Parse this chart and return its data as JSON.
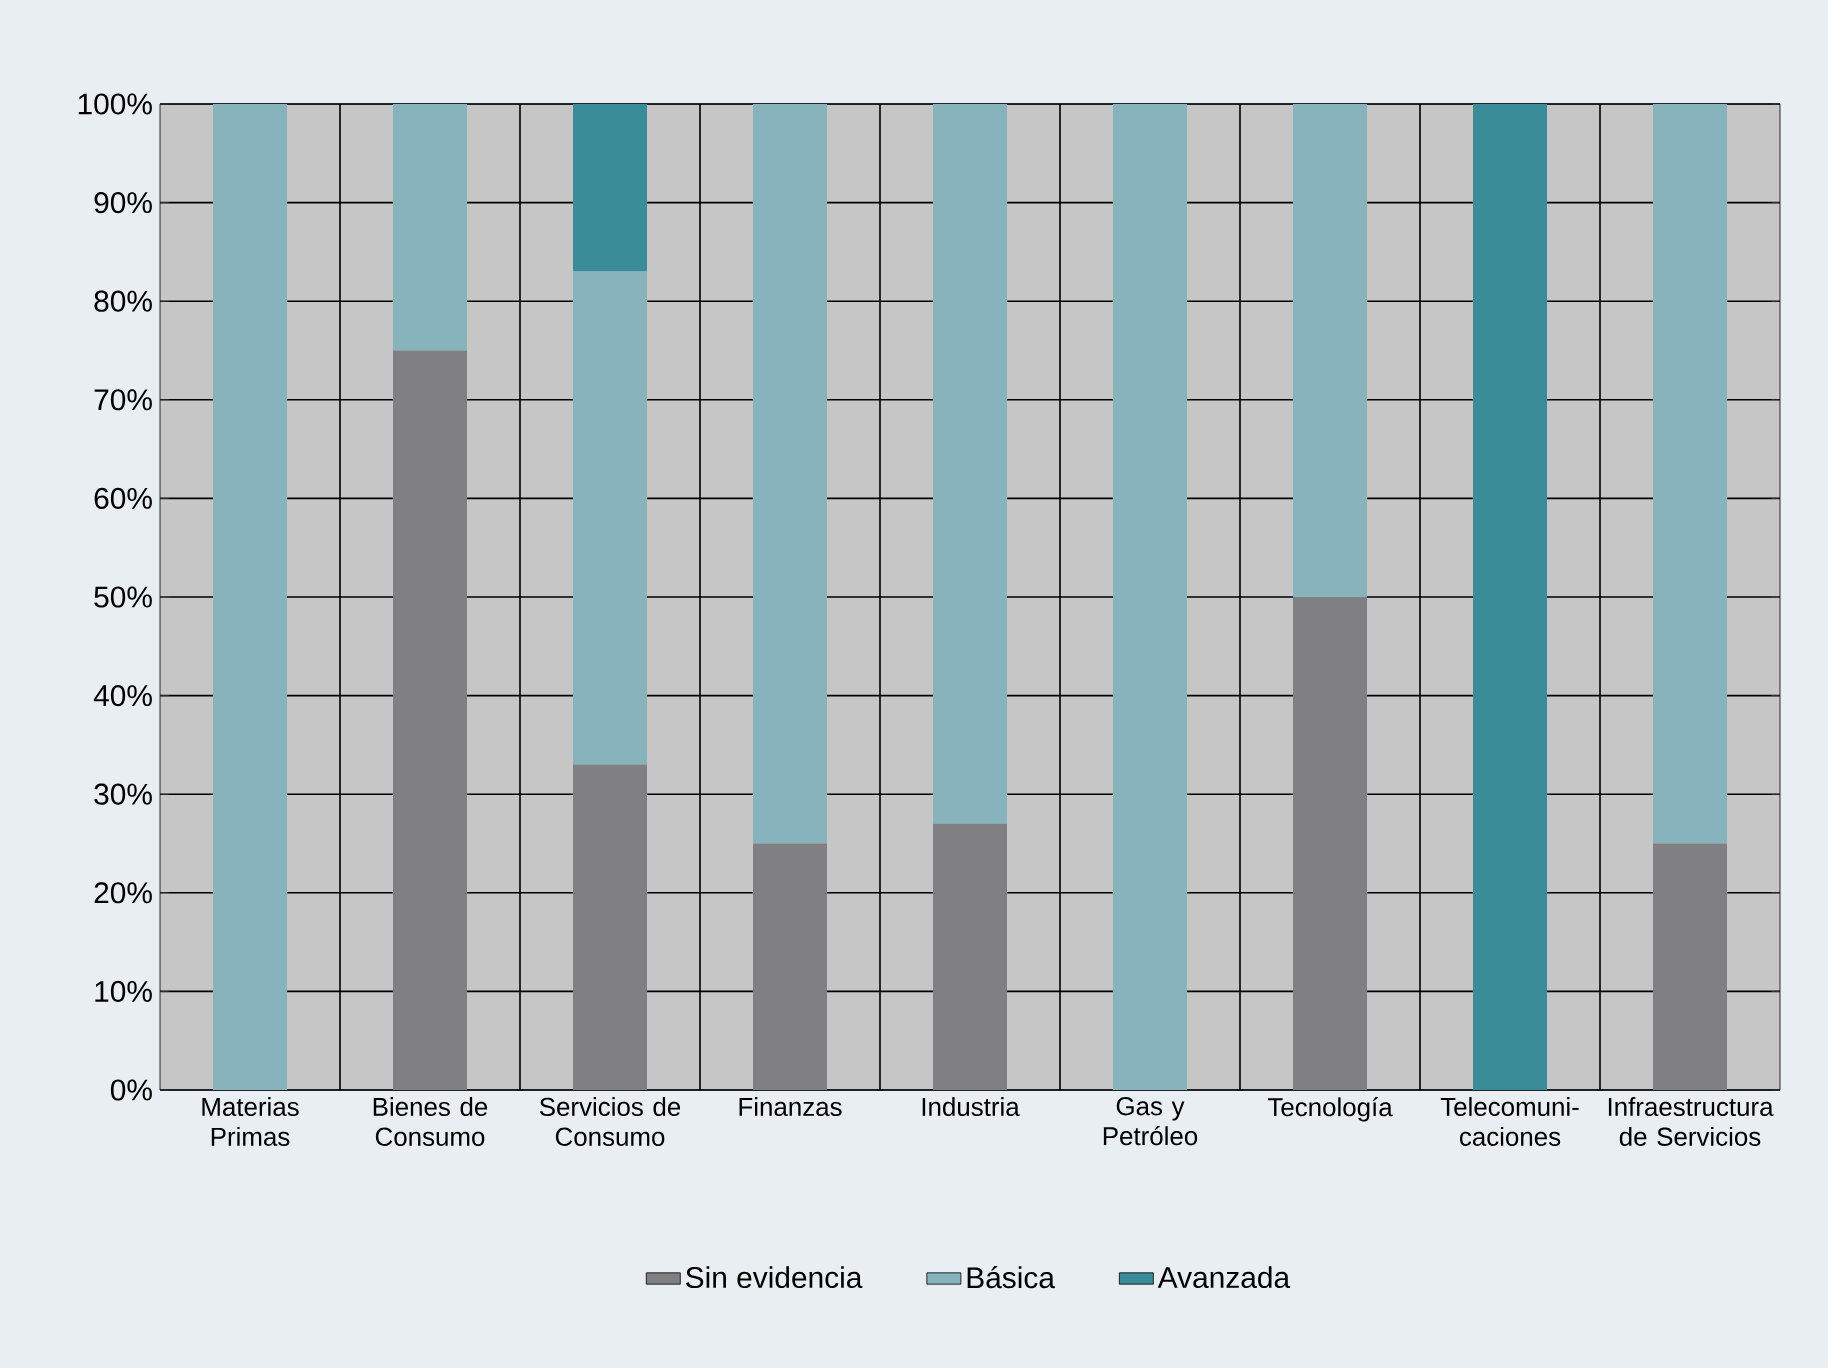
{
  "chart_data": {
    "type": "bar",
    "stacked": true,
    "categories": [
      "Materias Primas",
      "Bienes de Consumo",
      "Servicios de Consumo",
      "Finanzas",
      "Industria",
      "Gas y Petróleo",
      "Tecnología",
      "Telecomuni- caciones",
      "Infraestructura de Servicios"
    ],
    "series": [
      {
        "name": "Sin evidencia",
        "color": "#808083",
        "values": [
          0,
          75,
          33,
          25,
          27,
          0,
          50,
          0,
          25
        ]
      },
      {
        "name": "Básica",
        "color": "#87b3bc",
        "values": [
          100,
          25,
          50,
          75,
          73,
          100,
          50,
          0,
          75
        ]
      },
      {
        "name": "Avanzada",
        "color": "#3a8c98",
        "values": [
          0,
          0,
          17,
          0,
          0,
          0,
          0,
          100,
          0
        ]
      }
    ],
    "ylim": [
      0,
      100
    ],
    "yticks": [
      {
        "value": 0,
        "label": "0%"
      },
      {
        "value": 10,
        "label": "10%"
      },
      {
        "value": 20,
        "label": "20%"
      },
      {
        "value": 30,
        "label": "30%"
      },
      {
        "value": 40,
        "label": "40%"
      },
      {
        "value": 50,
        "label": "50%"
      },
      {
        "value": 60,
        "label": "60%"
      },
      {
        "value": 70,
        "label": "70%"
      },
      {
        "value": 80,
        "label": "80%"
      },
      {
        "value": 90,
        "label": "90%"
      },
      {
        "value": 100,
        "label": "100%"
      }
    ],
    "grid": true,
    "legend": "bottom"
  }
}
